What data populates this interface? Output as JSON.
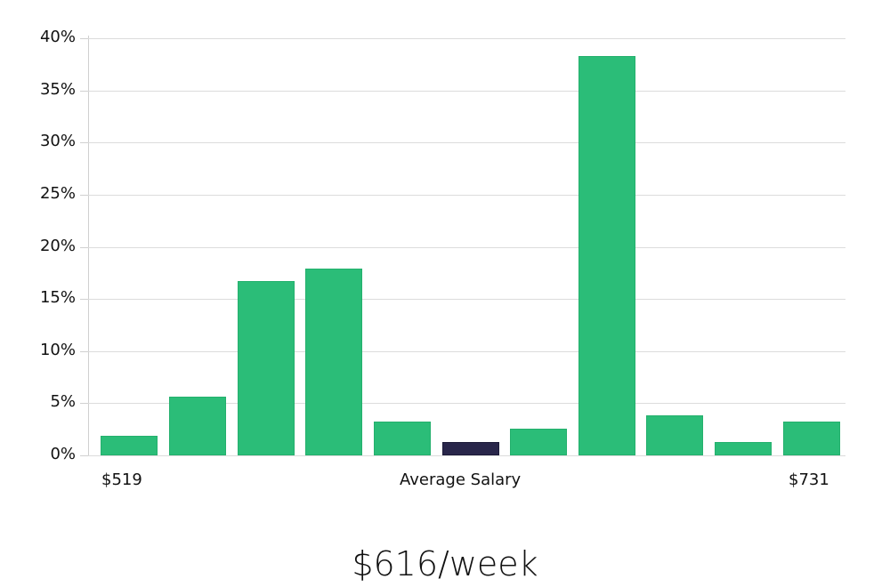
{
  "chart_data": {
    "type": "bar",
    "title": "",
    "xlabel": "Average Salary",
    "ylabel": "",
    "ylim": [
      0,
      40
    ],
    "y_ticks": [
      "0%",
      "5%",
      "10%",
      "15%",
      "20%",
      "25%",
      "30%",
      "35%",
      "40%"
    ],
    "x_range_labels": {
      "min": "$519",
      "max": "$731"
    },
    "categories": [
      "bin1",
      "bin2",
      "bin3",
      "bin4",
      "bin5",
      "bin6",
      "bin7",
      "bin8",
      "bin9",
      "bin10",
      "bin11"
    ],
    "values": [
      1.9,
      5.6,
      16.7,
      17.9,
      3.2,
      1.3,
      2.6,
      38.3,
      3.8,
      1.3,
      3.2
    ],
    "highlight_index": 5,
    "colors": {
      "bar": "#2bbd78",
      "highlight": "#29264a",
      "grid": "#dcdcdc"
    },
    "grid": true,
    "legend": null
  },
  "labels": {
    "x_min": "$519",
    "x_center": "Average Salary",
    "x_max": "$731",
    "headline": "$616/week"
  }
}
